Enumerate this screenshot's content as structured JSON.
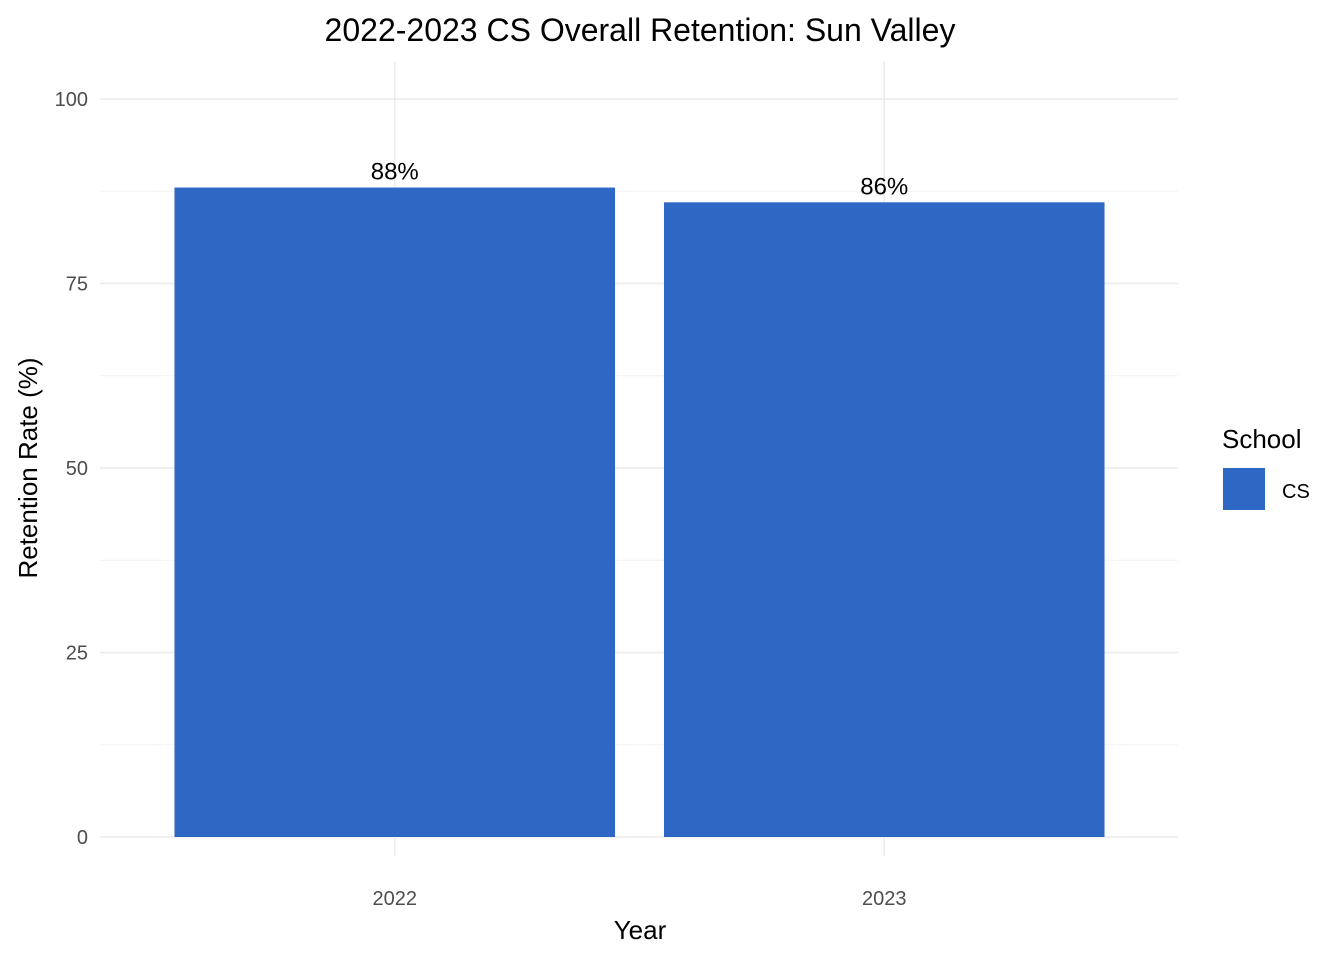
{
  "chart_data": {
    "type": "bar",
    "title": "2022-2023 CS Overall Retention: Sun Valley",
    "xlabel": "Year",
    "ylabel": "Retention Rate (%)",
    "categories": [
      "2022",
      "2023"
    ],
    "series": [
      {
        "name": "CS",
        "values": [
          88,
          86
        ],
        "color": "#2e68c4"
      }
    ],
    "data_labels": [
      "88%",
      "86%"
    ],
    "ylim": [
      0,
      100
    ],
    "yticks": [
      0,
      25,
      50,
      75,
      100
    ],
    "ytick_labels": [
      "0",
      "25",
      "50",
      "75",
      "100"
    ],
    "grid": true,
    "legend": {
      "title": "School",
      "entries": [
        "CS"
      ],
      "placement": "right"
    }
  }
}
